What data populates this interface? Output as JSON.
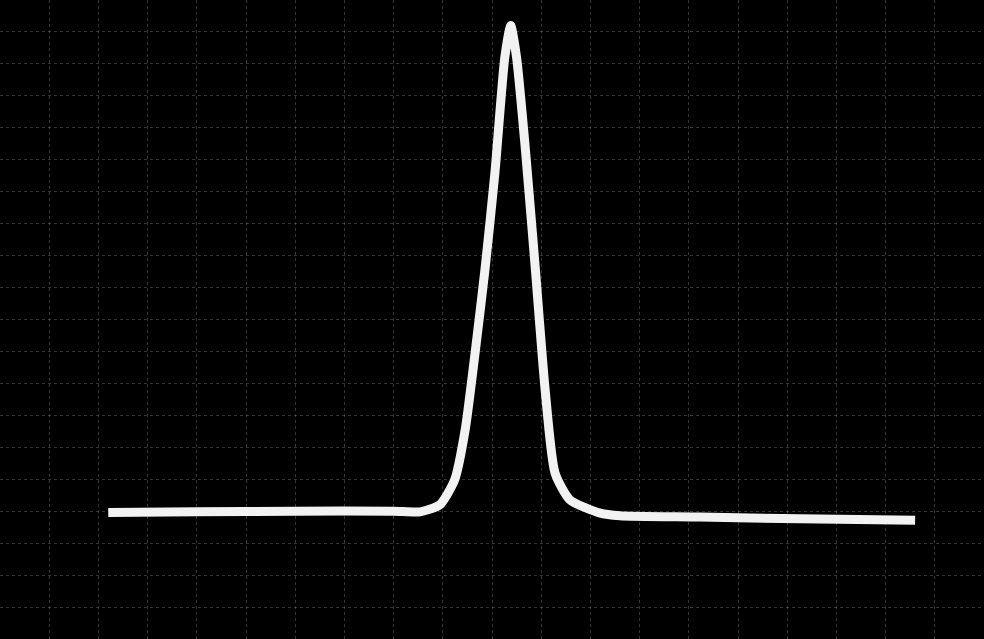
{
  "chart_data": {
    "type": "line",
    "color": "#f2f2f2",
    "x": [
      11,
      20,
      30,
      40,
      42.7,
      44.7,
      46.2,
      47.3,
      48.3,
      49.3,
      50.3,
      51.3,
      51.9,
      52.5,
      53.4,
      54.4,
      55.4,
      56.4,
      57.9,
      61,
      63,
      71.1,
      81.3,
      93
    ],
    "values": [
      19.8,
      19.9,
      20.0,
      20.0,
      19.9,
      21.0,
      24.9,
      33,
      45,
      58,
      73,
      91,
      96,
      91,
      76.5,
      58,
      39,
      26,
      21.8,
      19.7,
      19.3,
      19.1,
      18.8,
      18.6
    ],
    "xlim": [
      0,
      100
    ],
    "ylim": [
      0,
      100
    ],
    "xticks": [
      0,
      5,
      10,
      15,
      20,
      25,
      30,
      35,
      40,
      45,
      50,
      55,
      60,
      65,
      70,
      75,
      80,
      85,
      90,
      95,
      100
    ],
    "yticks": [
      0,
      5,
      10,
      15,
      20,
      25,
      30,
      35,
      40,
      45,
      50,
      55,
      60,
      65,
      70,
      75,
      80,
      85,
      90,
      95,
      100
    ],
    "grid": true,
    "tick_labels": false
  }
}
